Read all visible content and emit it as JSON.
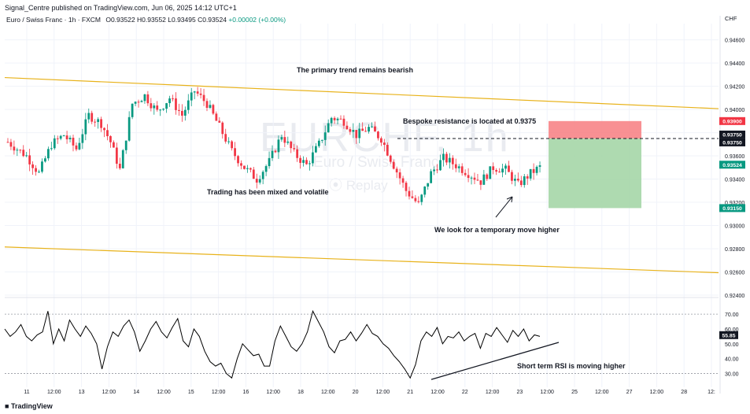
{
  "header": {
    "publish_line": "Signal_Centre published on TradingView.com, Jun 06, 2025 14:12 UTC+1",
    "symbol": "Euro / Swiss Franc · 1h · FXCM",
    "ohlc": "O0.93522 H0.93552 L0.93495 C0.93524",
    "change": "+0.00002 (+0.00%)",
    "currency": "CHF"
  },
  "watermark": {
    "ticker": "EURCHF, 1h",
    "name": "Euro / Swiss Franc",
    "replay": "Replay"
  },
  "footer": {
    "logo_text": "TradingView"
  },
  "colors": {
    "up": "#089981",
    "down": "#f23645",
    "trend": "#e8b21a",
    "stop_zone": "#f77c80",
    "target_zone": "#a5d6a7",
    "rsi": "#000000",
    "grid": "#f0f3fa"
  },
  "annotations": {
    "primary_trend": "The primary trend remains bearish",
    "resistance": "Bespoke resistance is located at 0.9375",
    "mixed": "Trading has been mixed and volatile",
    "temporary_move": "We look for a temporary move higher",
    "rsi_note": "Short term RSI is moving higher"
  },
  "chart_data": [
    {
      "type": "candlestick",
      "title": "Euro / Swiss Franc · 1h · FXCM",
      "ylim": [
        0.9242,
        0.9474
      ],
      "y_ticks": [
        "0.94600",
        "0.94400",
        "0.94200",
        "0.94000",
        "0.93800",
        "0.93600",
        "0.93400",
        "0.93200",
        "0.93000",
        "0.92800",
        "0.92600",
        "0.92400"
      ],
      "x_ticks": [
        "11",
        "12:00",
        "13",
        "12:00",
        "14",
        "12:00",
        "15",
        "12:00",
        "16",
        "12:00",
        "18",
        "12:00",
        "20",
        "12:00",
        "21",
        "12:00",
        "22",
        "12:00",
        "23",
        "12:00",
        "25",
        "12:00",
        "27",
        "12:00",
        "28",
        "12:"
      ],
      "price_path": [
        [
          0,
          0.9372
        ],
        [
          6,
          0.936
        ],
        [
          10,
          0.9345
        ],
        [
          14,
          0.937
        ],
        [
          18,
          0.9378
        ],
        [
          22,
          0.9366
        ],
        [
          26,
          0.9395
        ],
        [
          30,
          0.9388
        ],
        [
          33,
          0.9372
        ],
        [
          36,
          0.9348
        ],
        [
          40,
          0.9405
        ],
        [
          44,
          0.9412
        ],
        [
          48,
          0.9398
        ],
        [
          52,
          0.941
        ],
        [
          56,
          0.9395
        ],
        [
          60,
          0.9416
        ],
        [
          64,
          0.9405
        ],
        [
          68,
          0.9385
        ],
        [
          72,
          0.9364
        ],
        [
          76,
          0.935
        ],
        [
          80,
          0.934
        ],
        [
          84,
          0.9355
        ],
        [
          88,
          0.9378
        ],
        [
          92,
          0.9362
        ],
        [
          96,
          0.9352
        ],
        [
          100,
          0.937
        ],
        [
          104,
          0.9393
        ],
        [
          108,
          0.939
        ],
        [
          112,
          0.9378
        ],
        [
          116,
          0.9384
        ],
        [
          120,
          0.9375
        ],
        [
          124,
          0.9352
        ],
        [
          128,
          0.933
        ],
        [
          132,
          0.9318
        ],
        [
          136,
          0.9345
        ],
        [
          140,
          0.9358
        ],
        [
          144,
          0.9352
        ],
        [
          148,
          0.9345
        ],
        [
          152,
          0.9338
        ],
        [
          156,
          0.935
        ],
        [
          160,
          0.9348
        ],
        [
          164,
          0.9335
        ],
        [
          168,
          0.9345
        ],
        [
          172,
          0.9352
        ],
        [
          176,
          0.935
        ],
        [
          180,
          0.9352
        ]
      ],
      "levels": [
        {
          "label": "0.93900",
          "value": 0.939,
          "color": "#f23645"
        },
        {
          "label": "0.93750",
          "value": 0.9375,
          "color": "#131722"
        },
        {
          "label": "0.93750",
          "value": 0.9375,
          "color": "#131722"
        },
        {
          "label": "0.93524",
          "value": 0.93524,
          "color": "#089981"
        },
        {
          "label": "0.93150",
          "value": 0.9315,
          "color": "#089981"
        }
      ],
      "position": {
        "entry": 0.9375,
        "stop": 0.939,
        "target": 0.9315
      },
      "resistance": 0.9375,
      "trend_upper": [
        [
          0,
          0.94275
        ],
        [
          1,
          0.94007
        ]
      ],
      "trend_lower": [
        [
          0,
          0.92815
        ],
        [
          1,
          0.92593
        ]
      ]
    },
    {
      "type": "line",
      "title": "",
      "ylim": [
        25,
        78
      ],
      "y_ticks": [
        "70.00",
        "60.00",
        "50.00",
        "40.00",
        "30.00"
      ],
      "series": [
        {
          "values": [
            60,
            55,
            58,
            63,
            55,
            52,
            56,
            58,
            72,
            50,
            60,
            52,
            66,
            60,
            55,
            62,
            57,
            50,
            33,
            48,
            58,
            55,
            62,
            66,
            58,
            45,
            52,
            60,
            65,
            58,
            54,
            61,
            67,
            52,
            48,
            60,
            55,
            45,
            38,
            35,
            37,
            30,
            27,
            40,
            50,
            46,
            42,
            43,
            35,
            35,
            52,
            62,
            55,
            48,
            45,
            50,
            58,
            72,
            65,
            58,
            48,
            44,
            52,
            53,
            58,
            52,
            57,
            63,
            57,
            55,
            50,
            47,
            42,
            38,
            33,
            27,
            36,
            52,
            58,
            55,
            61,
            50,
            55,
            54,
            58,
            52,
            55,
            57,
            47,
            57,
            55,
            61,
            56,
            51,
            59,
            55,
            60,
            52,
            56,
            55
          ]
        }
      ],
      "value_label": "55.85",
      "trend": [
        [
          0.0,
          0.0
        ],
        [
          1.0,
          1.0
        ]
      ]
    }
  ]
}
